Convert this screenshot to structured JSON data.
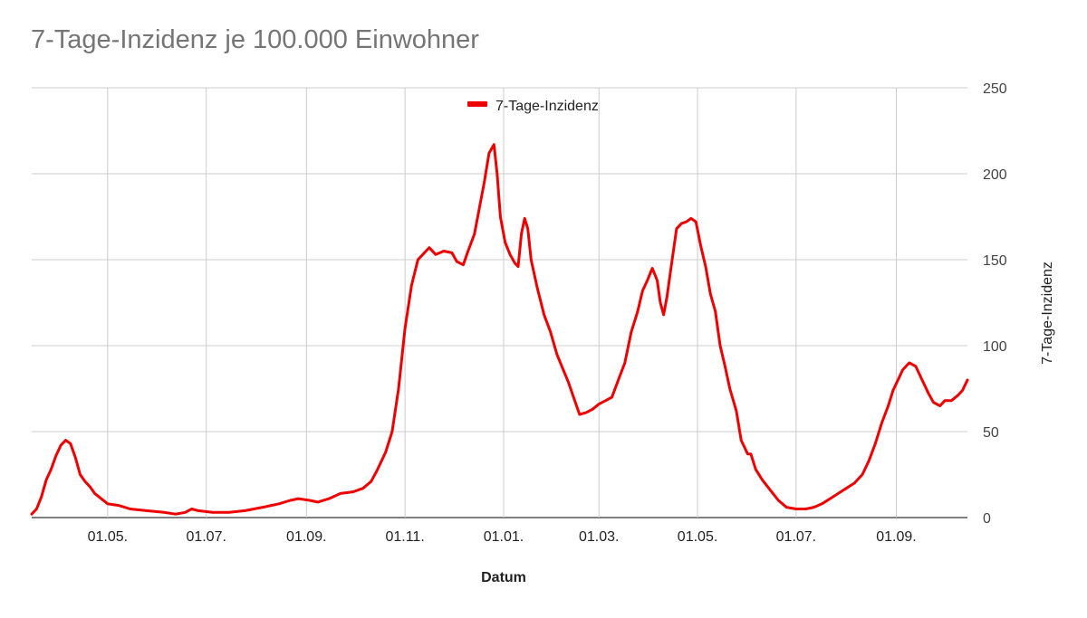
{
  "chart_data": {
    "type": "line",
    "title": "7-Tage-Inzidenz je 100.000 Einwohner",
    "xlabel": "Datum",
    "ylabel": "7-Tage-Inzidenz",
    "ylim": [
      0,
      250
    ],
    "yticks": [
      "0",
      "50",
      "100",
      "150",
      "200",
      "250"
    ],
    "y_axis_side": "right",
    "grid": true,
    "legend_position": "top-center",
    "x_range": [
      "2020-03-15",
      "2021-10-15"
    ],
    "xticks": [
      {
        "date": "2020-05-01",
        "label": "01.05."
      },
      {
        "date": "2020-07-01",
        "label": "01.07."
      },
      {
        "date": "2020-09-01",
        "label": "01.09."
      },
      {
        "date": "2020-11-01",
        "label": "01.11."
      },
      {
        "date": "2021-01-01",
        "label": "01.01."
      },
      {
        "date": "2021-03-01",
        "label": "01.03."
      },
      {
        "date": "2021-05-01",
        "label": "01.05."
      },
      {
        "date": "2021-07-01",
        "label": "01.07."
      },
      {
        "date": "2021-09-01",
        "label": "01.09."
      }
    ],
    "series": [
      {
        "name": "7-Tage-Inzidenz",
        "color": "#ee0000",
        "points": [
          [
            "2020-03-15",
            2
          ],
          [
            "2020-03-18",
            5
          ],
          [
            "2020-03-21",
            12
          ],
          [
            "2020-03-24",
            22
          ],
          [
            "2020-03-27",
            28
          ],
          [
            "2020-03-30",
            36
          ],
          [
            "2020-04-02",
            42
          ],
          [
            "2020-04-05",
            45
          ],
          [
            "2020-04-08",
            43
          ],
          [
            "2020-04-11",
            35
          ],
          [
            "2020-04-14",
            25
          ],
          [
            "2020-04-17",
            21
          ],
          [
            "2020-04-20",
            18
          ],
          [
            "2020-04-23",
            14
          ],
          [
            "2020-04-27",
            11
          ],
          [
            "2020-05-01",
            8
          ],
          [
            "2020-05-08",
            7
          ],
          [
            "2020-05-15",
            5
          ],
          [
            "2020-05-25",
            4
          ],
          [
            "2020-06-05",
            3
          ],
          [
            "2020-06-12",
            2
          ],
          [
            "2020-06-18",
            3
          ],
          [
            "2020-06-22",
            5
          ],
          [
            "2020-06-26",
            4
          ],
          [
            "2020-07-05",
            3
          ],
          [
            "2020-07-15",
            3
          ],
          [
            "2020-07-25",
            4
          ],
          [
            "2020-08-05",
            6
          ],
          [
            "2020-08-15",
            8
          ],
          [
            "2020-08-22",
            10
          ],
          [
            "2020-08-27",
            11
          ],
          [
            "2020-09-03",
            10
          ],
          [
            "2020-09-08",
            9
          ],
          [
            "2020-09-15",
            11
          ],
          [
            "2020-09-22",
            14
          ],
          [
            "2020-09-30",
            15
          ],
          [
            "2020-10-06",
            17
          ],
          [
            "2020-10-11",
            21
          ],
          [
            "2020-10-15",
            28
          ],
          [
            "2020-10-20",
            38
          ],
          [
            "2020-10-24",
            50
          ],
          [
            "2020-10-28",
            75
          ],
          [
            "2020-11-01",
            110
          ],
          [
            "2020-11-05",
            135
          ],
          [
            "2020-11-09",
            150
          ],
          [
            "2020-11-13",
            154
          ],
          [
            "2020-11-16",
            157
          ],
          [
            "2020-11-20",
            153
          ],
          [
            "2020-11-25",
            155
          ],
          [
            "2020-11-30",
            154
          ],
          [
            "2020-12-03",
            149
          ],
          [
            "2020-12-07",
            147
          ],
          [
            "2020-12-10",
            155
          ],
          [
            "2020-12-14",
            165
          ],
          [
            "2020-12-17",
            180
          ],
          [
            "2020-12-20",
            195
          ],
          [
            "2020-12-23",
            212
          ],
          [
            "2020-12-26",
            217
          ],
          [
            "2020-12-28",
            200
          ],
          [
            "2020-12-30",
            175
          ],
          [
            "2021-01-02",
            160
          ],
          [
            "2021-01-05",
            153
          ],
          [
            "2021-01-08",
            148
          ],
          [
            "2021-01-10",
            146
          ],
          [
            "2021-01-12",
            165
          ],
          [
            "2021-01-14",
            174
          ],
          [
            "2021-01-16",
            168
          ],
          [
            "2021-01-18",
            150
          ],
          [
            "2021-01-22",
            133
          ],
          [
            "2021-01-26",
            118
          ],
          [
            "2021-01-30",
            108
          ],
          [
            "2021-02-03",
            95
          ],
          [
            "2021-02-06",
            88
          ],
          [
            "2021-02-10",
            79
          ],
          [
            "2021-02-14",
            68
          ],
          [
            "2021-02-17",
            60
          ],
          [
            "2021-02-21",
            61
          ],
          [
            "2021-02-25",
            63
          ],
          [
            "2021-03-01",
            66
          ],
          [
            "2021-03-05",
            68
          ],
          [
            "2021-03-09",
            70
          ],
          [
            "2021-03-13",
            80
          ],
          [
            "2021-03-17",
            90
          ],
          [
            "2021-03-21",
            108
          ],
          [
            "2021-03-25",
            120
          ],
          [
            "2021-03-28",
            132
          ],
          [
            "2021-03-31",
            138
          ],
          [
            "2021-04-03",
            145
          ],
          [
            "2021-04-06",
            138
          ],
          [
            "2021-04-08",
            125
          ],
          [
            "2021-04-10",
            118
          ],
          [
            "2021-04-12",
            128
          ],
          [
            "2021-04-15",
            148
          ],
          [
            "2021-04-18",
            168
          ],
          [
            "2021-04-21",
            171
          ],
          [
            "2021-04-24",
            172
          ],
          [
            "2021-04-27",
            174
          ],
          [
            "2021-04-30",
            172
          ],
          [
            "2021-05-03",
            158
          ],
          [
            "2021-05-06",
            146
          ],
          [
            "2021-05-09",
            130
          ],
          [
            "2021-05-12",
            120
          ],
          [
            "2021-05-15",
            100
          ],
          [
            "2021-05-18",
            88
          ],
          [
            "2021-05-21",
            75
          ],
          [
            "2021-05-25",
            62
          ],
          [
            "2021-05-28",
            45
          ],
          [
            "2021-06-01",
            37
          ],
          [
            "2021-06-03",
            37
          ],
          [
            "2021-06-06",
            28
          ],
          [
            "2021-06-10",
            22
          ],
          [
            "2021-06-15",
            16
          ],
          [
            "2021-06-20",
            10
          ],
          [
            "2021-06-25",
            6
          ],
          [
            "2021-07-01",
            5
          ],
          [
            "2021-07-07",
            5
          ],
          [
            "2021-07-12",
            6
          ],
          [
            "2021-07-17",
            8
          ],
          [
            "2021-07-22",
            11
          ],
          [
            "2021-07-27",
            14
          ],
          [
            "2021-08-01",
            17
          ],
          [
            "2021-08-06",
            20
          ],
          [
            "2021-08-11",
            25
          ],
          [
            "2021-08-15",
            33
          ],
          [
            "2021-08-19",
            43
          ],
          [
            "2021-08-23",
            55
          ],
          [
            "2021-08-27",
            65
          ],
          [
            "2021-08-30",
            74
          ],
          [
            "2021-09-02",
            80
          ],
          [
            "2021-09-05",
            86
          ],
          [
            "2021-09-09",
            90
          ],
          [
            "2021-09-13",
            88
          ],
          [
            "2021-09-17",
            80
          ],
          [
            "2021-09-21",
            72
          ],
          [
            "2021-09-24",
            67
          ],
          [
            "2021-09-28",
            65
          ],
          [
            "2021-10-01",
            68
          ],
          [
            "2021-10-05",
            68
          ],
          [
            "2021-10-09",
            71
          ],
          [
            "2021-10-12",
            74
          ],
          [
            "2021-10-15",
            80
          ]
        ]
      }
    ]
  }
}
